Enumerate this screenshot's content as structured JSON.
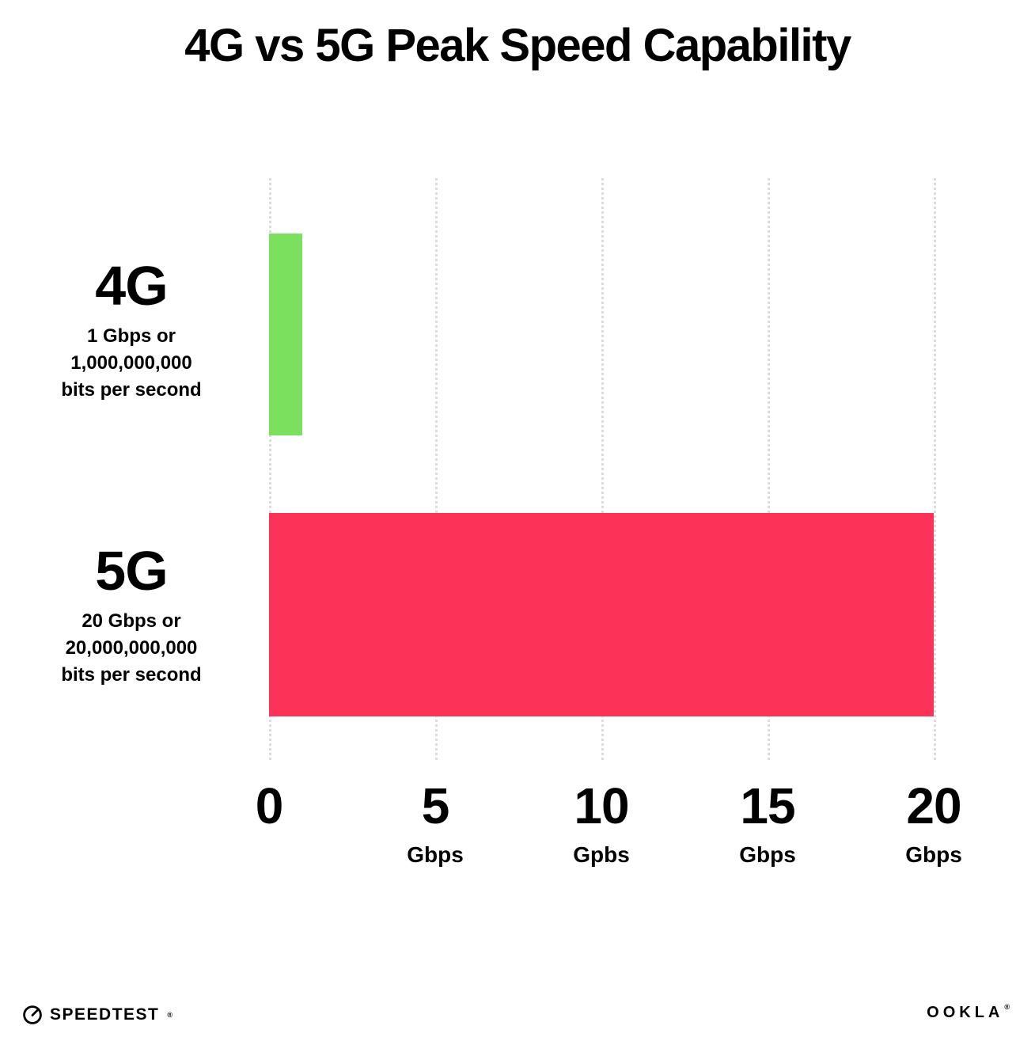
{
  "title": "4G vs 5G Peak Speed Capability",
  "chart_data": {
    "type": "bar",
    "orientation": "horizontal",
    "title": "4G vs 5G Peak Speed Capability",
    "categories": [
      "4G",
      "5G"
    ],
    "values": [
      1,
      20
    ],
    "x_min": 0,
    "x_max": 20,
    "grid": "vertical-dotted",
    "legend": "none",
    "rows": [
      {
        "name": "4G",
        "value": 1,
        "color": "#7ce05f",
        "sub": [
          "1 Gbps or",
          "1,000,000,000",
          "bits per second"
        ]
      },
      {
        "name": "5G",
        "value": 20,
        "color": "#fc3258",
        "sub": [
          "20 Gbps or",
          "20,000,000,000",
          "bits per second"
        ]
      }
    ],
    "ticks": [
      {
        "label": "0",
        "unit": ""
      },
      {
        "label": "5",
        "unit": "Gbps"
      },
      {
        "label": "10",
        "unit": "Gpbs"
      },
      {
        "label": "15",
        "unit": "Gbps"
      },
      {
        "label": "20",
        "unit": "Gbps"
      }
    ]
  },
  "footer": {
    "speedtest_label": "SPEEDTEST",
    "speedtest_mark": "®",
    "ookla_label": "OOKLA",
    "ookla_mark": "®"
  },
  "colors": {
    "bar_4g": "#7ce05f",
    "bar_5g": "#fc3258",
    "gridline": "#dcdcdc",
    "text": "#000000",
    "background": "#ffffff"
  }
}
